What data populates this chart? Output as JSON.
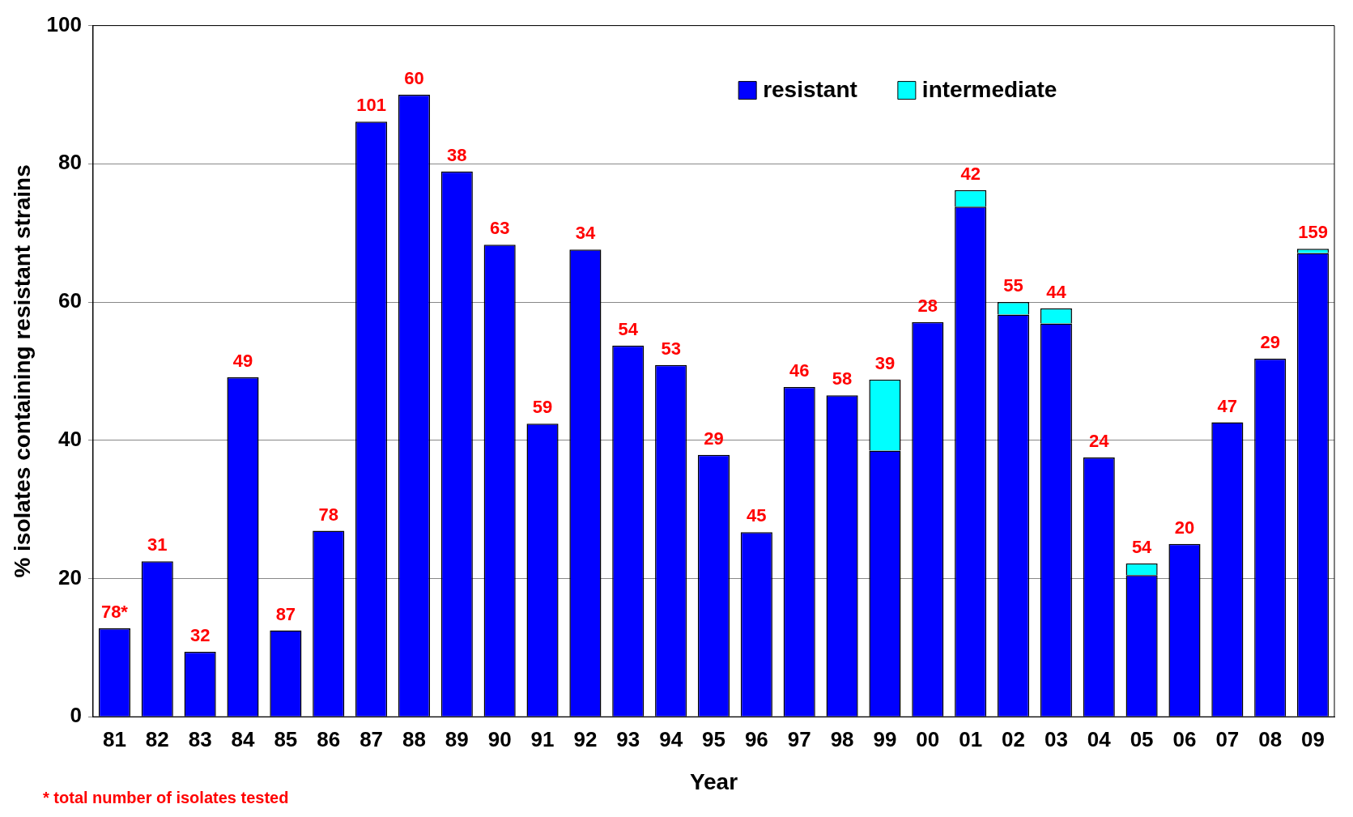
{
  "chart_data": {
    "type": "bar",
    "stacked": true,
    "xlabel": "Year",
    "ylabel": "% isolates containing resistant strains",
    "categories": [
      "81",
      "82",
      "83",
      "84",
      "85",
      "86",
      "87",
      "88",
      "89",
      "90",
      "91",
      "92",
      "93",
      "94",
      "95",
      "96",
      "97",
      "98",
      "99",
      "00",
      "01",
      "02",
      "03",
      "04",
      "05",
      "06",
      "07",
      "08",
      "09"
    ],
    "series": [
      {
        "name": "resistant",
        "color": "#0000ff",
        "values": [
          12.8,
          22.5,
          9.4,
          49.1,
          12.5,
          26.9,
          86.1,
          90.0,
          78.9,
          68.3,
          42.4,
          67.6,
          53.7,
          50.9,
          37.9,
          26.7,
          47.7,
          46.5,
          38.5,
          57.1,
          73.8,
          58.2,
          56.9,
          37.5,
          20.5,
          25.0,
          42.6,
          51.8,
          67.1
        ]
      },
      {
        "name": "intermediate",
        "color": "#00ffff",
        "values": [
          0,
          0,
          0,
          0,
          0,
          0,
          0,
          0,
          0,
          0,
          0,
          0,
          0,
          0,
          0,
          0,
          0,
          0,
          10.3,
          0,
          2.4,
          1.8,
          2.2,
          0,
          1.7,
          0,
          0,
          0,
          0.6
        ]
      }
    ],
    "ylim": [
      0,
      100
    ],
    "yticks": [
      0,
      20,
      40,
      60,
      80,
      100
    ],
    "grid": "y",
    "legend": "top right",
    "annotations": [
      {
        "text": "78*",
        "x": "81",
        "y": 12.8
      },
      {
        "text": "31",
        "x": "82",
        "y": 22.5
      },
      {
        "text": "32",
        "x": "83",
        "y": 9.4
      },
      {
        "text": "49",
        "x": "84",
        "y": 49.1
      },
      {
        "text": "87",
        "x": "85",
        "y": 12.5
      },
      {
        "text": "78",
        "x": "86",
        "y": 26.9
      },
      {
        "text": "101",
        "x": "87",
        "y": 86.1
      },
      {
        "text": "60",
        "x": "88",
        "y": 90.0
      },
      {
        "text": "38",
        "x": "89",
        "y": 78.9
      },
      {
        "text": "63",
        "x": "90",
        "y": 68.3
      },
      {
        "text": "59",
        "x": "91",
        "y": 42.4
      },
      {
        "text": "34",
        "x": "92",
        "y": 67.6
      },
      {
        "text": "54",
        "x": "93",
        "y": 53.7
      },
      {
        "text": "53",
        "x": "94",
        "y": 50.9
      },
      {
        "text": "29",
        "x": "95",
        "y": 37.9
      },
      {
        "text": "45",
        "x": "96",
        "y": 26.7
      },
      {
        "text": "46",
        "x": "97",
        "y": 47.7
      },
      {
        "text": "58",
        "x": "98",
        "y": 46.5
      },
      {
        "text": "39",
        "x": "99",
        "y": 48.8
      },
      {
        "text": "28",
        "x": "00",
        "y": 57.1
      },
      {
        "text": "42",
        "x": "01",
        "y": 76.2
      },
      {
        "text": "55",
        "x": "02",
        "y": 60.0
      },
      {
        "text": "44",
        "x": "03",
        "y": 59.1
      },
      {
        "text": "24",
        "x": "04",
        "y": 37.5
      },
      {
        "text": "54",
        "x": "05",
        "y": 22.2
      },
      {
        "text": "20",
        "x": "06",
        "y": 25.0
      },
      {
        "text": "47",
        "x": "07",
        "y": 42.6
      },
      {
        "text": "29",
        "x": "08",
        "y": 51.8
      },
      {
        "text": "159",
        "x": "09",
        "y": 67.7
      },
      "* total number of isolates tested"
    ]
  }
}
